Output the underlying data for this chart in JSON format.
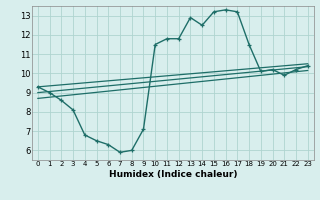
{
  "xlabel": "Humidex (Indice chaleur)",
  "bg_color": "#d8eeed",
  "grid_color": "#afd4d0",
  "line_color": "#1e6e68",
  "xlim": [
    -0.5,
    23.5
  ],
  "ylim": [
    5.5,
    13.5
  ],
  "xticks": [
    0,
    1,
    2,
    3,
    4,
    5,
    6,
    7,
    8,
    9,
    10,
    11,
    12,
    13,
    14,
    15,
    16,
    17,
    18,
    19,
    20,
    21,
    22,
    23
  ],
  "yticks": [
    6,
    7,
    8,
    9,
    10,
    11,
    12,
    13
  ],
  "main_x": [
    0,
    1,
    2,
    3,
    4,
    5,
    6,
    7,
    8,
    9,
    10,
    11,
    12,
    13,
    14,
    15,
    16,
    17,
    18,
    19,
    20,
    21,
    22,
    23
  ],
  "main_y": [
    9.3,
    9.0,
    8.6,
    8.1,
    6.8,
    6.5,
    6.3,
    5.9,
    6.0,
    7.1,
    11.5,
    11.8,
    11.8,
    12.9,
    12.5,
    13.2,
    13.3,
    13.2,
    11.5,
    10.1,
    10.2,
    9.9,
    10.2,
    10.4
  ],
  "trend1_x": [
    0,
    23
  ],
  "trend1_y": [
    9.3,
    10.5
  ],
  "trend2_x": [
    0,
    23
  ],
  "trend2_y": [
    9.0,
    10.35
  ],
  "trend3_x": [
    0,
    23
  ],
  "trend3_y": [
    8.7,
    10.15
  ]
}
